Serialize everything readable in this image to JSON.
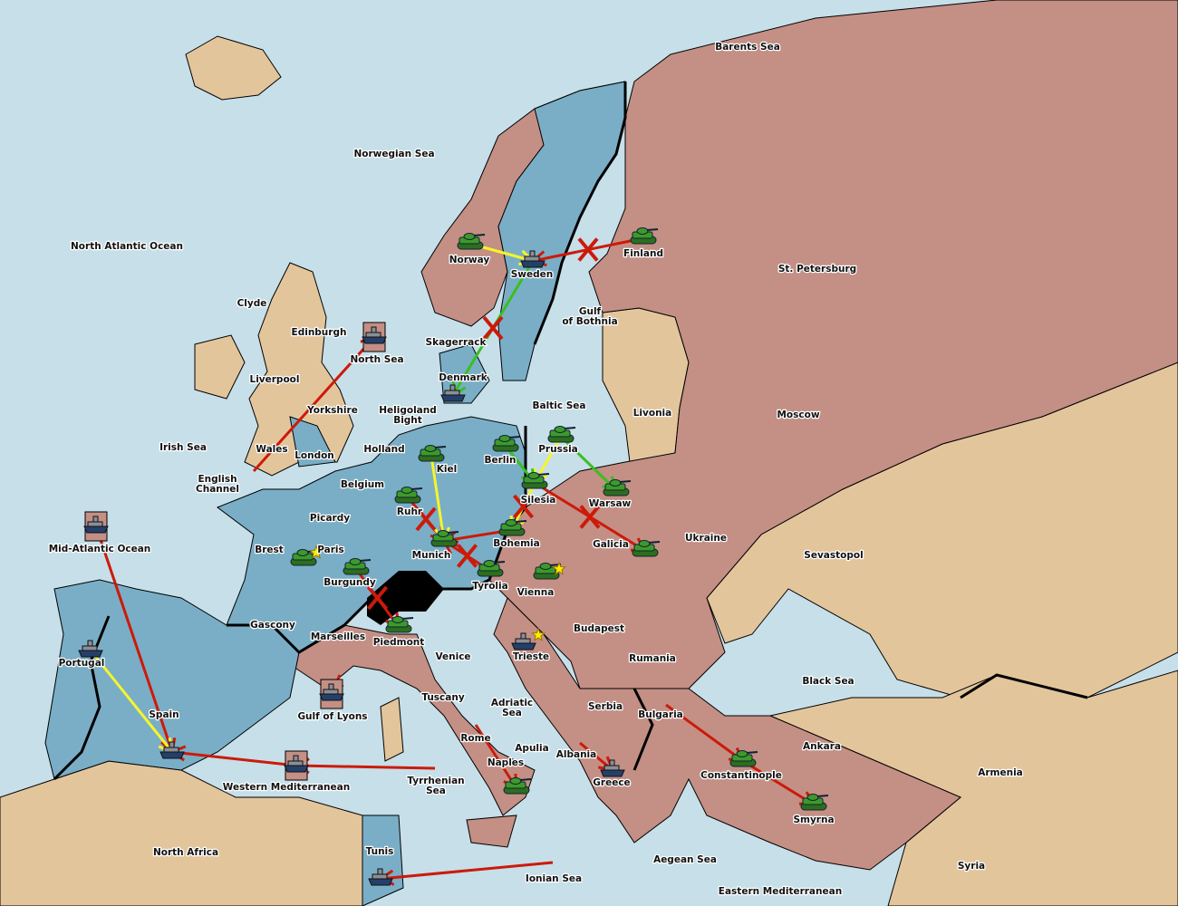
{
  "colors": {
    "sea": "#c6dfe9",
    "blue_power": "#7aaec6",
    "red_power": "#c48f85",
    "neutral": "#e3c59c",
    "impassable": "#000000",
    "army": "#3d9a2a",
    "fleet": "#8a8f96",
    "order_red": "#cc1a0a",
    "order_yellow": "#f5f52a",
    "order_green": "#38c020",
    "supply_center_star": "#ffee00"
  },
  "territories": [
    "Barents Sea",
    "Norwegian Sea",
    "North Atlantic Ocean",
    "Norway",
    "Sweden",
    "Finland",
    "St. Petersburg",
    "Clyde",
    "Edinburgh",
    "Gulf of Bothnia",
    "Skagerrack",
    "North Sea",
    "Liverpool",
    "Denmark",
    "Baltic Sea",
    "Yorkshire",
    "Heligoland Bight",
    "Livonia",
    "Moscow",
    "Irish Sea",
    "Wales",
    "Holland",
    "Prussia",
    "London",
    "Berlin",
    "Kiel",
    "English Channel",
    "Belgium",
    "Silesia",
    "Warsaw",
    "Ruhr",
    "Picardy",
    "Bohemia",
    "Galicia",
    "Ukraine",
    "Brest",
    "Paris",
    "Mid-Atlantic Ocean",
    "Munich",
    "Sevastopol",
    "Burgundy",
    "Tyrolia",
    "Vienna",
    "Gascony",
    "Budapest",
    "Marseilles",
    "Piedmont",
    "Portugal",
    "Venice",
    "Trieste",
    "Rumania",
    "Black Sea",
    "Tuscany",
    "Adriatic Sea",
    "Serbia",
    "Bulgaria",
    "Spain",
    "Gulf of Lyons",
    "Ankara",
    "Rome",
    "Apulia",
    "Albania",
    "Armenia",
    "Naples",
    "Constantinople",
    "Greece",
    "Western Mediterranean",
    "Tyrrhenian Sea",
    "Smyrna",
    "North Africa",
    "Tunis",
    "Aegean Sea",
    "Syria",
    "Ionian Sea",
    "Eastern Mediterranean"
  ],
  "units": [
    {
      "type": "army",
      "icon": "tank-icon",
      "territory": "Norway"
    },
    {
      "type": "army",
      "icon": "tank-icon",
      "territory": "Finland"
    },
    {
      "type": "army",
      "icon": "tank-icon",
      "territory": "Prussia"
    },
    {
      "type": "army",
      "icon": "tank-icon",
      "territory": "Berlin"
    },
    {
      "type": "army",
      "icon": "tank-icon",
      "territory": "Kiel"
    },
    {
      "type": "army",
      "icon": "tank-icon",
      "territory": "Silesia"
    },
    {
      "type": "army",
      "icon": "tank-icon",
      "territory": "Warsaw"
    },
    {
      "type": "army",
      "icon": "tank-icon",
      "territory": "Ruhr"
    },
    {
      "type": "army",
      "icon": "tank-icon",
      "territory": "Bohemia"
    },
    {
      "type": "army",
      "icon": "tank-icon",
      "territory": "Munich"
    },
    {
      "type": "army",
      "icon": "tank-icon",
      "territory": "Galicia"
    },
    {
      "type": "army",
      "icon": "tank-icon",
      "territory": "Paris"
    },
    {
      "type": "army",
      "icon": "tank-icon",
      "territory": "Burgundy"
    },
    {
      "type": "army",
      "icon": "tank-icon",
      "territory": "Tyrolia"
    },
    {
      "type": "army",
      "icon": "tank-icon",
      "territory": "Vienna"
    },
    {
      "type": "army",
      "icon": "tank-icon",
      "territory": "Piedmont"
    },
    {
      "type": "army",
      "icon": "tank-icon",
      "territory": "Naples"
    },
    {
      "type": "army",
      "icon": "tank-icon",
      "territory": "Constantinople"
    },
    {
      "type": "army",
      "icon": "tank-icon",
      "territory": "Smyrna"
    },
    {
      "type": "fleet",
      "icon": "ship-icon",
      "territory": "Sweden"
    },
    {
      "type": "fleet",
      "icon": "ship-icon",
      "territory": "Denmark"
    },
    {
      "type": "fleet",
      "icon": "ship-icon",
      "territory": "Portugal"
    },
    {
      "type": "fleet",
      "icon": "ship-icon",
      "territory": "Spain"
    },
    {
      "type": "fleet",
      "icon": "ship-icon",
      "territory": "Trieste"
    },
    {
      "type": "fleet",
      "icon": "ship-icon",
      "territory": "Greece"
    },
    {
      "type": "fleet",
      "icon": "ship-icon",
      "territory": "Tunis"
    },
    {
      "type": "fleet",
      "icon": "ship-icon",
      "territory": "North Sea",
      "boxed": true
    },
    {
      "type": "fleet",
      "icon": "ship-icon",
      "territory": "Mid-Atlantic Ocean",
      "boxed": true
    },
    {
      "type": "fleet",
      "icon": "ship-icon",
      "territory": "Gulf of Lyons",
      "boxed": true
    },
    {
      "type": "fleet",
      "icon": "ship-icon",
      "territory": "Western Mediterranean",
      "boxed": true
    }
  ],
  "stars": [
    "Paris",
    "Vienna",
    "Trieste"
  ],
  "orders": [
    {
      "from": "Finland",
      "to": "Sweden",
      "color": "red",
      "failed": true
    },
    {
      "from": "Norway",
      "to": "Sweden",
      "color": "yellow"
    },
    {
      "from": "Sweden",
      "to": "Denmark",
      "color": "green",
      "failed": true
    },
    {
      "from": "Wales",
      "to": "North Sea",
      "color": "red"
    },
    {
      "from": "Mid-Atlantic Ocean",
      "to": "Spain",
      "color": "red"
    },
    {
      "from": "Portugal",
      "to": "Spain",
      "color": "yellow"
    },
    {
      "from": "Western Mediterranean",
      "to": "Spain",
      "color": "red"
    },
    {
      "from": "Tyrrhenian Sea",
      "to": "Western Mediterranean",
      "color": "red"
    },
    {
      "from": "Ionian Sea",
      "to": "Tunis",
      "color": "red"
    },
    {
      "from": "Rome",
      "to": "Naples",
      "color": "red"
    },
    {
      "from": "Albania",
      "to": "Greece",
      "color": "red"
    },
    {
      "from": "Bulgaria",
      "to": "Constantinople",
      "color": "red"
    },
    {
      "from": "Constantinople",
      "to": "Smyrna",
      "color": "red"
    },
    {
      "from": "Silesia",
      "to": "Galicia",
      "color": "red",
      "failed": true
    },
    {
      "from": "Marseilles",
      "to": "Gulf of Lyons",
      "color": "red"
    },
    {
      "from": "Burgundy",
      "to": "Piedmont",
      "color": "red",
      "failed": true
    },
    {
      "from": "Ruhr",
      "to": "Munich",
      "color": "red",
      "failed": true
    },
    {
      "from": "Tyrolia",
      "to": "Munich",
      "color": "red",
      "failed": true
    },
    {
      "from": "Bohemia",
      "to": "Munich",
      "color": "red"
    },
    {
      "from": "Kiel",
      "to": "Munich",
      "color": "yellow"
    },
    {
      "from": "Prussia",
      "to": "Silesia",
      "color": "yellow"
    },
    {
      "from": "Silesia",
      "to": "Bohemia",
      "color": "yellow",
      "failed": true
    },
    {
      "from": "Prussia",
      "to": "Warsaw",
      "color": "green"
    },
    {
      "from": "Berlin",
      "to": "Silesia",
      "color": "green"
    }
  ]
}
